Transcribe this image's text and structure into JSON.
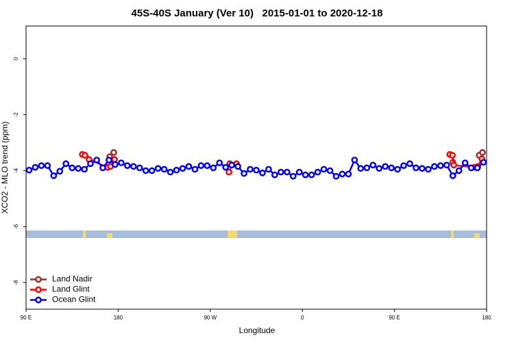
{
  "chart_data": {
    "type": "line",
    "title": "45S-40S January (Ver 10)   2015-01-01 to 2020-12-18",
    "x_label": "Longitude",
    "y_label": "XCO2 - MLO trend (ppm)",
    "xlim": [
      90,
      540
    ],
    "xticks": [
      {
        "value": 90,
        "label": "90 E"
      },
      {
        "value": 180,
        "label": "180"
      },
      {
        "value": 270,
        "label": "90 W"
      },
      {
        "value": 360,
        "label": "0"
      },
      {
        "value": 450,
        "label": "90 E"
      },
      {
        "value": 540,
        "label": "180"
      }
    ],
    "ylim": [
      -8.95,
      1.17
    ],
    "yticks": [
      0,
      -2,
      -4,
      -6,
      -8
    ],
    "legend": "bottomleft",
    "series": [
      {
        "name": "Land Nadir",
        "color": "#a52a2a",
        "x": [
          171.7,
          175.7,
          null,
          289,
          null,
          507,
          null,
          532.7,
          536
        ],
        "values": [
          -3.5,
          -3.35,
          null,
          -3.75,
          null,
          -3.7,
          null,
          -3.45,
          -3.35
        ]
      },
      {
        "name": "Land Glint",
        "color": "#ff0000",
        "x": [
          145,
          147.6,
          151.6,
          169.7,
          172.4,
          176.4,
          null,
          288.3,
          291,
          295.6,
          null,
          504,
          506.6,
          508,
          528,
          531.4,
          535.4
        ],
        "values": [
          -3.42,
          -3.45,
          -3.6,
          -3.88,
          -3.85,
          -3.6,
          null,
          -4.05,
          -3.8,
          -3.75,
          null,
          -3.42,
          -3.45,
          -3.8,
          -3.88,
          -3.85,
          -3.58
        ]
      },
      {
        "name": "Ocean Glint",
        "color": "#0000ff",
        "x": [
          93,
          99,
          105,
          111,
          117,
          123,
          129,
          135,
          141,
          147,
          153,
          159,
          165,
          171,
          177,
          183,
          189,
          195,
          201,
          207,
          213,
          219,
          225,
          231,
          237,
          243,
          249,
          255,
          261,
          267,
          273,
          279,
          285,
          291,
          297,
          303,
          309,
          315,
          321,
          327,
          333,
          339,
          345,
          351,
          357,
          363,
          369,
          375,
          381,
          387,
          393,
          399,
          405,
          411,
          417,
          423,
          429,
          435,
          441,
          447,
          453,
          459,
          465,
          471,
          477,
          483,
          489,
          495,
          501,
          507,
          513,
          519,
          525,
          531,
          537
        ],
        "values": [
          -3.98,
          -3.88,
          -3.82,
          -3.82,
          -4.18,
          -4.02,
          -3.75,
          -3.9,
          -3.92,
          -3.95,
          -3.75,
          -3.62,
          -3.9,
          -3.62,
          -3.78,
          -3.72,
          -3.82,
          -3.85,
          -3.9,
          -4.0,
          -4.0,
          -3.92,
          -3.95,
          -4.05,
          -3.98,
          -3.92,
          -3.85,
          -3.95,
          -3.82,
          -3.82,
          -3.9,
          -3.72,
          -3.88,
          -3.8,
          -3.85,
          -4.1,
          -3.95,
          -3.98,
          -4.08,
          -3.95,
          -4.15,
          -4.05,
          -4.05,
          -4.2,
          -4.05,
          -4.15,
          -4.15,
          -4.05,
          -3.95,
          -4.0,
          -4.2,
          -4.12,
          -4.12,
          -3.62,
          -3.92,
          -3.9,
          -3.8,
          -3.92,
          -3.85,
          -3.9,
          -3.95,
          -3.82,
          -3.75,
          -3.9,
          -3.92,
          -3.95,
          -3.85,
          -3.82,
          -3.8,
          -4.18,
          -4.0,
          -3.72,
          -3.9,
          -3.9,
          -3.7
        ]
      }
    ]
  }
}
